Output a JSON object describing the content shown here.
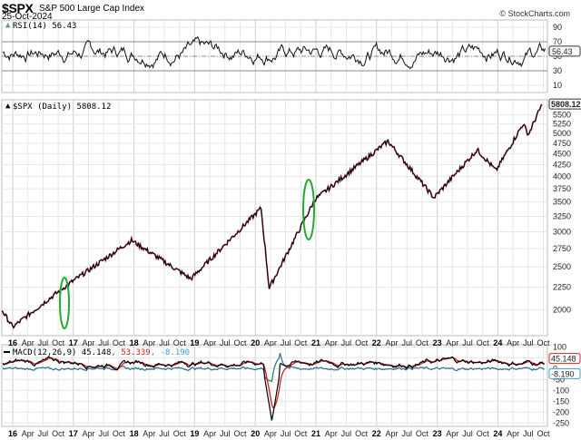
{
  "header": {
    "symbol": "$SPX",
    "name": "S&P 500 Large Cap Index",
    "date": "25-Oct-2024",
    "brand": "© StockCharts.com"
  },
  "colors": {
    "grid": "#dddddd",
    "price_up": "#000000",
    "price_down": "#cc2244",
    "macd_line": "#000000",
    "macd_signal": "#cc2222",
    "macd_hist": "#2a6f8f",
    "annotation": "#22aa33",
    "rsi_fill": "#6a9a6a"
  },
  "rsi_panel": {
    "label": "RSI(14) 56.43",
    "value_tag": "56.43",
    "ticks": [
      "90",
      "70",
      "50",
      "30",
      "10"
    ]
  },
  "price_panel": {
    "label": "$SPX (Daily) 5808.12",
    "value_tag": "5808.12",
    "ticks": [
      "5500",
      "5250",
      "5000",
      "4750",
      "4500",
      "4250",
      "4000",
      "3750",
      "3500",
      "3250",
      "3000",
      "2750",
      "2500",
      "2250",
      "2000"
    ]
  },
  "macd_panel": {
    "label_prefix": "MACD(12,26,9) 45.148",
    "label_signal": ", 53.339",
    "label_hist": ", -8.190",
    "macd_tag": "45.148",
    "hist_tag": "-8.190",
    "ticks": [
      "100",
      "50",
      "0",
      "-50",
      "-100",
      "-150",
      "-200",
      "-250"
    ]
  },
  "x_axis": {
    "labels": [
      "16",
      "Apr",
      "Jul",
      "Oct",
      "17",
      "Apr",
      "Jul",
      "Oct",
      "18",
      "Apr",
      "Jul",
      "Oct",
      "19",
      "Apr",
      "Jul",
      "Oct",
      "20",
      "Apr",
      "Jul",
      "Oct",
      "21",
      "Apr",
      "Jul",
      "Oct",
      "22",
      "Apr",
      "Jul",
      "Oct",
      "23",
      "Apr",
      "Jul",
      "Oct",
      "24",
      "Apr",
      "Jul",
      "Oct"
    ]
  },
  "chart_data": [
    {
      "type": "line",
      "title": "RSI(14)",
      "x": [
        "2016",
        "2017",
        "2018",
        "2019",
        "2020",
        "2021",
        "2022",
        "2023",
        "2024"
      ],
      "ylim": [
        0,
        100
      ],
      "reference_lines": [
        30,
        50,
        70
      ],
      "last_value": 56.43,
      "series": [
        {
          "name": "RSI(14)",
          "values": [
            55,
            60,
            62,
            50,
            58,
            60,
            45,
            55,
            65
          ]
        }
      ]
    },
    {
      "type": "line",
      "title": "$SPX (Daily) 5808.12",
      "x": [
        "Jan-16",
        "Feb-16",
        "Oct-16",
        "Jan-17",
        "Jan-18",
        "Dec-18",
        "Feb-20",
        "Mar-20",
        "Nov-20",
        "Jan-22",
        "Oct-22",
        "Jul-23",
        "Oct-23",
        "Mar-24",
        "Apr-24",
        "Oct-24"
      ],
      "ylim": [
        1800,
        5900
      ],
      "scale": "log",
      "last_value": 5808.12,
      "series": [
        {
          "name": "$SPX",
          "values": [
            2000,
            1830,
            2130,
            2270,
            2870,
            2350,
            3390,
            2240,
            3550,
            4800,
            3580,
            4590,
            4120,
            5250,
            4970,
            5808
          ]
        }
      ],
      "annotations": [
        "green ellipse near Nov 2016",
        "green ellipse near Nov 2020"
      ]
    },
    {
      "type": "line",
      "title": "MACD(12,26,9)",
      "ylim": [
        -260,
        110
      ],
      "series": [
        {
          "name": "MACD",
          "last": 45.148
        },
        {
          "name": "Signal",
          "last": 53.339
        },
        {
          "name": "Histogram",
          "last": -8.19
        }
      ],
      "notes": "deep trough ~-240 in Mar-2020"
    }
  ]
}
